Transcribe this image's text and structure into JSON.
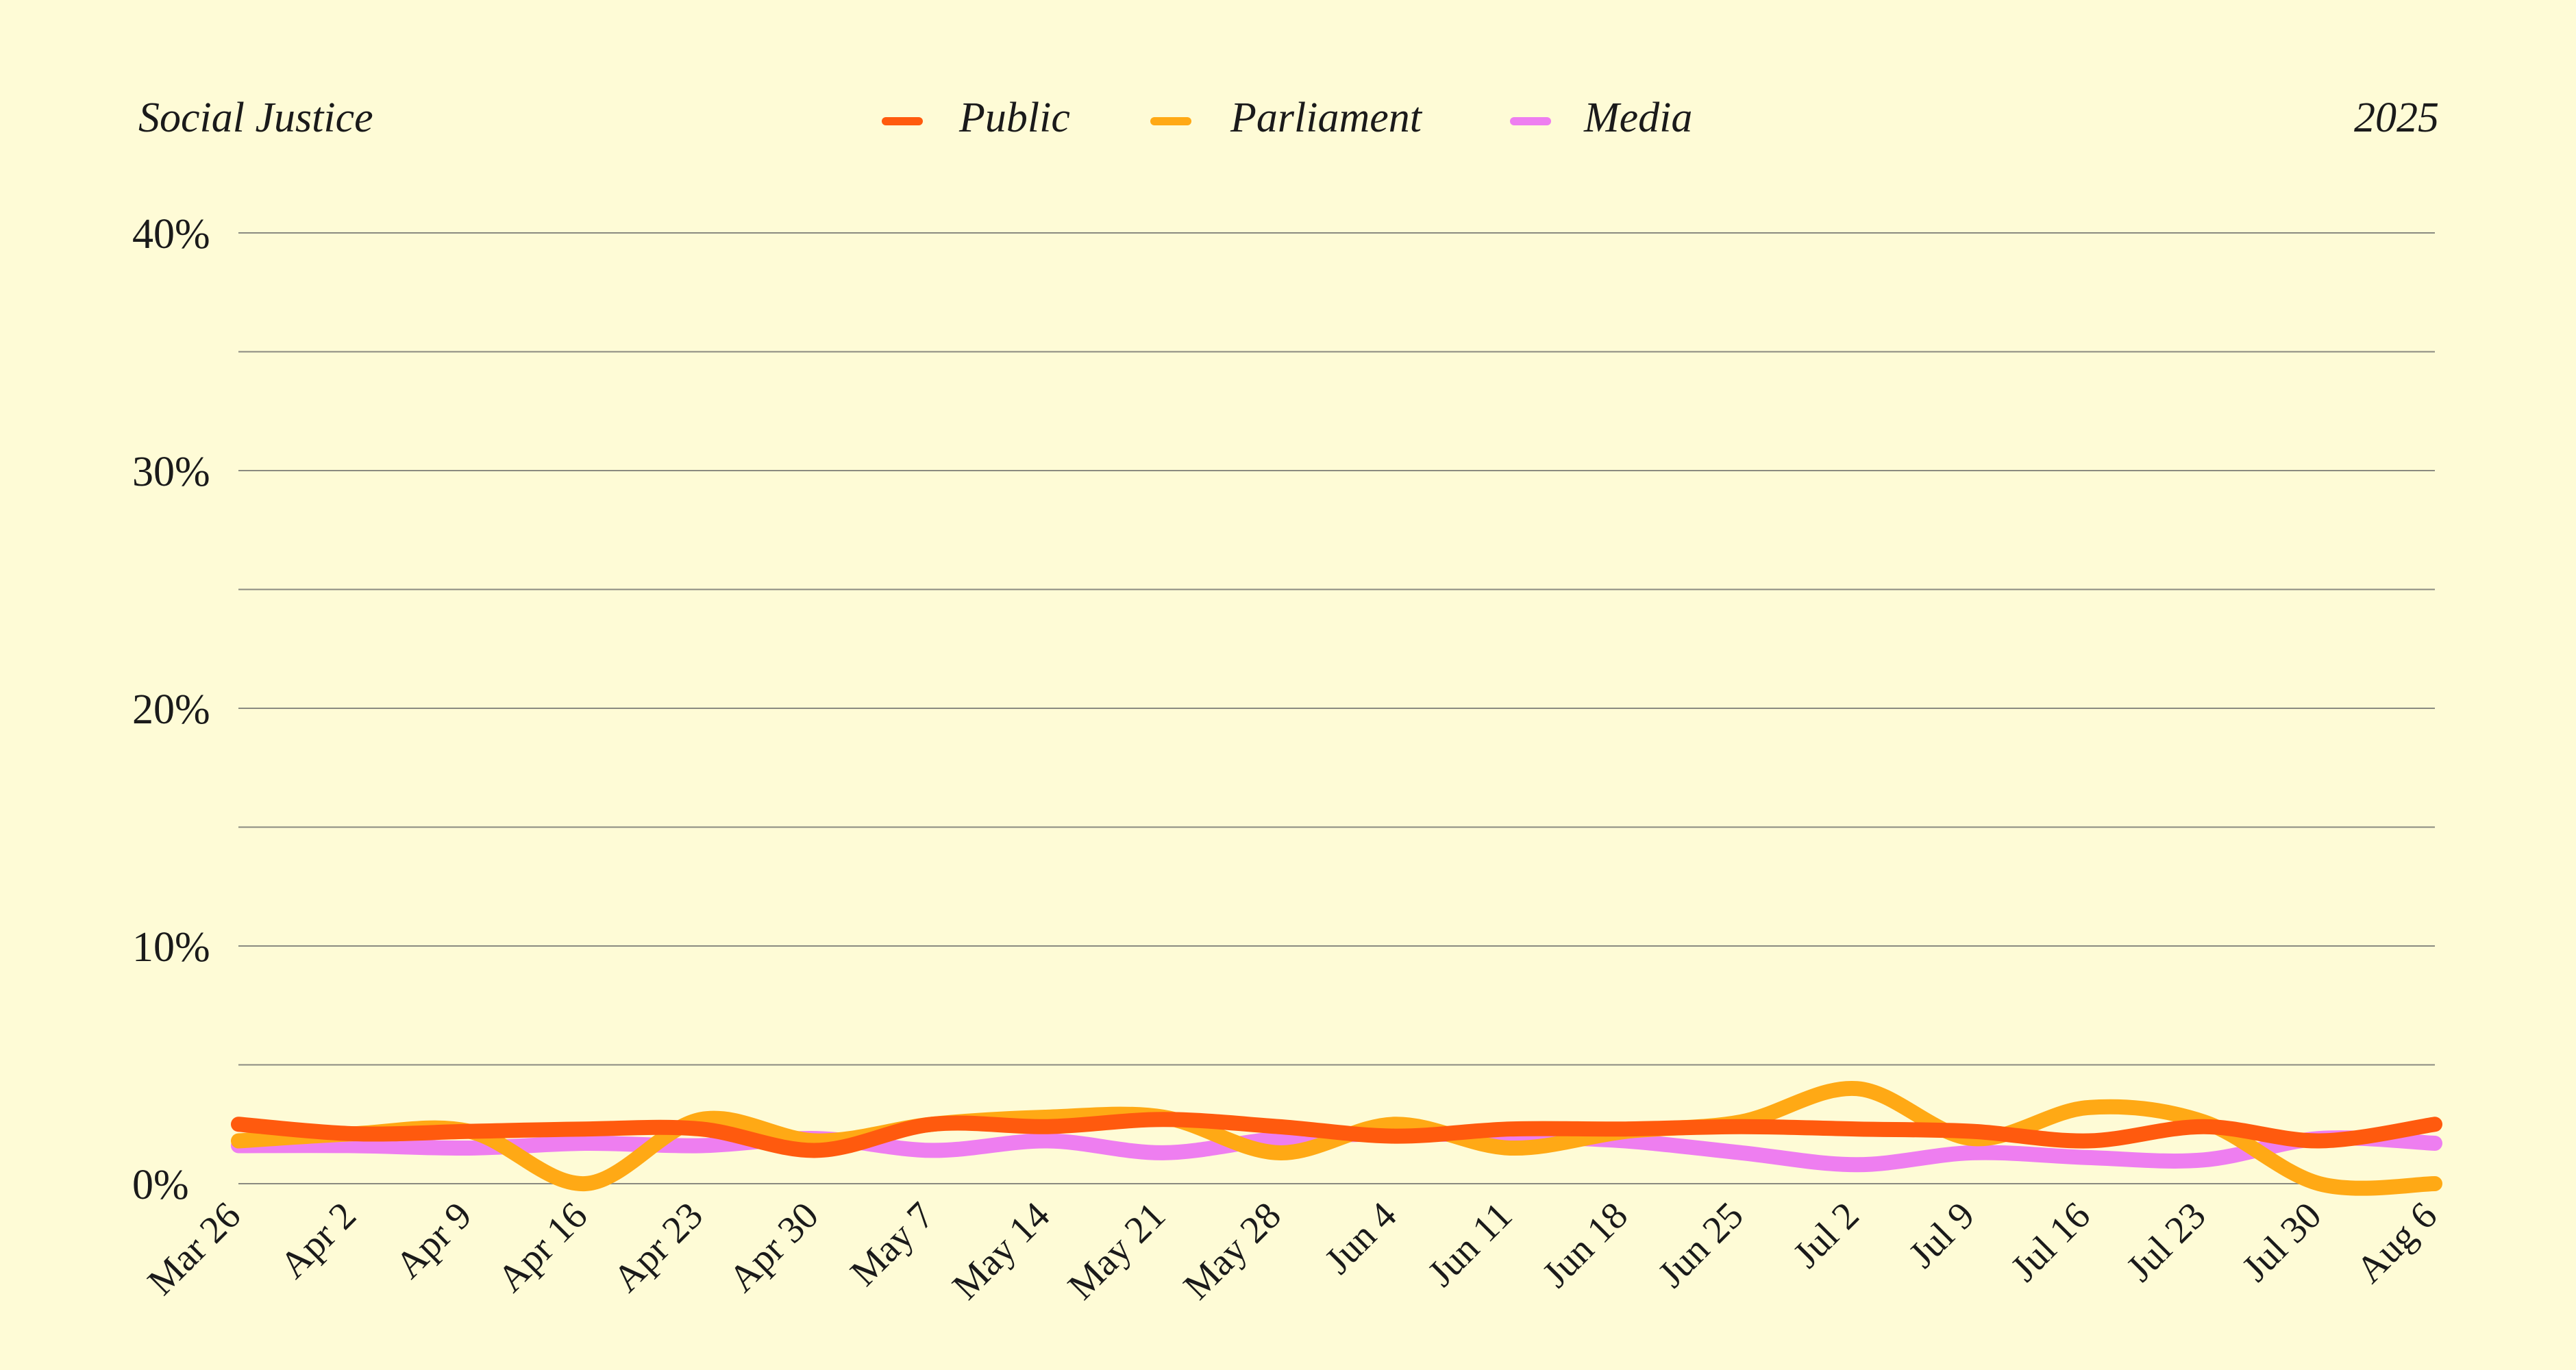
{
  "header": {
    "topic": "Social Justice",
    "year": "2025"
  },
  "colors": {
    "background": "#fefbd6",
    "public": "#ff5a0e",
    "parliament": "#ffa915",
    "media": "#ee7ef0"
  },
  "chart_data": {
    "type": "line",
    "title": "Social Justice",
    "year_label": "2025",
    "categories": [
      "Mar 26",
      "Apr 2",
      "Apr 9",
      "Apr 16",
      "Apr 23",
      "Apr 30",
      "May 7",
      "May 14",
      "May 21",
      "May 28",
      "Jun 4",
      "Jun 11",
      "Jun 18",
      "Jun 25",
      "Jul 2",
      "Jul 9",
      "Jul 16",
      "Jul 23",
      "Jul 30",
      "Aug 6"
    ],
    "y_ticks": [
      "0%",
      "10%",
      "20%",
      "30%",
      "40%"
    ],
    "ylim": [
      0,
      40
    ],
    "grid": true,
    "legend_position": "top-center",
    "series": [
      {
        "name": "Media",
        "color": "#ee7ef0",
        "values": [
          1.6,
          1.6,
          1.5,
          1.7,
          1.6,
          1.9,
          1.4,
          1.8,
          1.3,
          1.9,
          2.1,
          2.0,
          1.8,
          1.3,
          0.8,
          1.3,
          1.1,
          1.0,
          1.9,
          1.7
        ]
      },
      {
        "name": "Parliament",
        "color": "#ffa915",
        "values": [
          1.8,
          2.1,
          2.2,
          0.0,
          2.7,
          1.8,
          2.5,
          2.8,
          2.8,
          1.3,
          2.5,
          1.5,
          2.2,
          2.6,
          4.0,
          1.9,
          3.2,
          2.6,
          0.0,
          0.0
        ]
      },
      {
        "name": "Public",
        "color": "#ff5a0e",
        "values": [
          2.5,
          2.1,
          2.2,
          2.3,
          2.3,
          1.4,
          2.5,
          2.4,
          2.7,
          2.4,
          2.0,
          2.3,
          2.3,
          2.4,
          2.3,
          2.2,
          1.8,
          2.4,
          1.8,
          2.5
        ]
      }
    ],
    "legend": [
      "Public",
      "Parliament",
      "Media"
    ]
  }
}
